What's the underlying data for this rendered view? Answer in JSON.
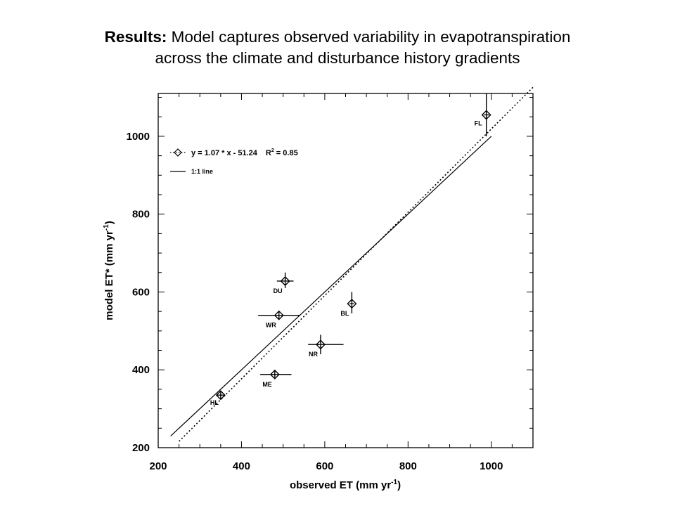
{
  "slide": {
    "title_bold": "Results:",
    "title_rest": " Model captures observed variability in evapotranspiration",
    "title_line2": "across the climate and disturbance history gradients"
  },
  "chart_data": {
    "type": "scatter",
    "xlabel": "observed ET (mm yr",
    "xlabel_sup": "-1",
    "xlabel_end": ")",
    "ylabel": "model ET* (mm yr",
    "ylabel_sup": "-1",
    "ylabel_end": ")",
    "xlim": [
      200,
      1100
    ],
    "ylim": [
      200,
      1110
    ],
    "xticks": [
      200,
      400,
      600,
      800,
      1000
    ],
    "yticks": [
      200,
      400,
      600,
      800,
      1000
    ],
    "grid": false,
    "legend_position": "top-left",
    "legend": {
      "fit_label": "y = 1.07 * x - 51.24",
      "r2_label": "R",
      "r2_sup": "2",
      "r2_value": " = 0.85",
      "line_label": "1:1 line"
    },
    "fit": {
      "slope": 1.07,
      "intercept": -51.24,
      "x_range": [
        250,
        1100
      ]
    },
    "one_to_one": {
      "x_range": [
        230,
        1000
      ]
    },
    "points": [
      {
        "label": "HL",
        "x": 350,
        "y": 335,
        "xerr": [
          340,
          360
        ],
        "yerr": [
          325,
          345
        ]
      },
      {
        "label": "ME",
        "x": 480,
        "y": 388,
        "xerr": [
          445,
          520
        ],
        "yerr": [
          380,
          398
        ]
      },
      {
        "label": "WR",
        "x": 490,
        "y": 540,
        "xerr": [
          440,
          540
        ],
        "yerr": [
          530,
          550
        ]
      },
      {
        "label": "DU",
        "x": 505,
        "y": 628,
        "xerr": [
          485,
          525
        ],
        "yerr": [
          610,
          650
        ]
      },
      {
        "label": "NR",
        "x": 590,
        "y": 465,
        "xerr": [
          560,
          645
        ],
        "yerr": [
          440,
          490
        ]
      },
      {
        "label": "BL",
        "x": 665,
        "y": 570,
        "xerr": [
          660,
          670
        ],
        "yerr": [
          545,
          600
        ]
      },
      {
        "label": "FL",
        "x": 988,
        "y": 1055,
        "xerr": [
          982,
          995
        ],
        "yerr": [
          1000,
          1110
        ]
      }
    ]
  }
}
